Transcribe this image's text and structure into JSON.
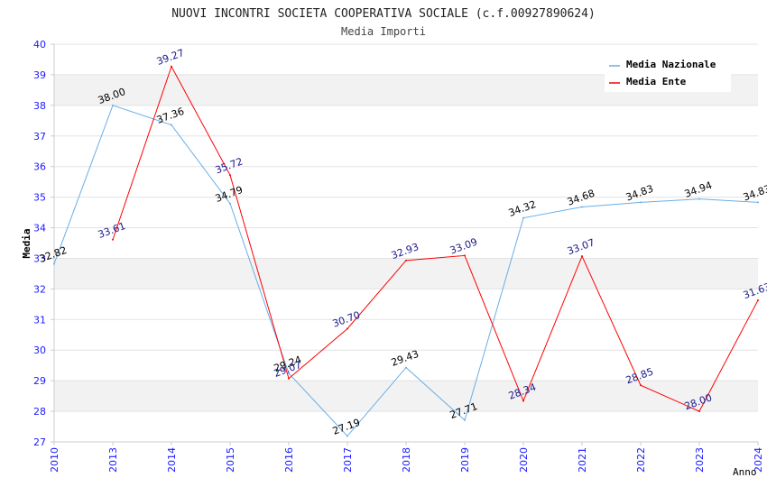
{
  "chart_data": {
    "type": "line",
    "title": "NUOVI INCONTRI SOCIETA COOPERATIVA SOCIALE (c.f.00927890624)",
    "subtitle": "Media Importi",
    "xlabel": "Anno",
    "ylabel": "Media",
    "categories": [
      "2010",
      "2013",
      "2014",
      "2015",
      "2016",
      "2017",
      "2018",
      "2019",
      "2020",
      "2021",
      "2022",
      "2023",
      "2024"
    ],
    "y_ticks": [
      "27",
      "28",
      "29",
      "30",
      "31",
      "32",
      "33",
      "34",
      "35",
      "36",
      "37",
      "38",
      "39",
      "40"
    ],
    "ylim": [
      27,
      40
    ],
    "grid": true,
    "legend_position": "top-right",
    "series": [
      {
        "name": "Media Nazionale",
        "color": "#6aaee6",
        "label_color": "#000000",
        "values": [
          32.82,
          38.0,
          37.36,
          34.79,
          29.24,
          27.19,
          29.43,
          27.71,
          34.32,
          34.68,
          34.83,
          34.94,
          34.83
        ],
        "labels": [
          "32.82",
          "38.00",
          "37.36",
          "34.79",
          "29.24",
          "27.19",
          "29.43",
          "27.71",
          "34.32",
          "34.68",
          "34.83",
          "34.94",
          "34.83"
        ]
      },
      {
        "name": "Media Ente",
        "color": "#ff0000",
        "label_color": "#1a1a8c",
        "values": [
          null,
          33.61,
          39.27,
          35.72,
          29.07,
          30.7,
          32.93,
          33.09,
          28.34,
          33.07,
          28.85,
          28.0,
          31.63
        ],
        "labels": [
          "",
          "33.61",
          "39.27",
          "35.72",
          "29.07",
          "30.70",
          "32.93",
          "33.09",
          "28.34",
          "33.07",
          "28.85",
          "28.00",
          "31.63"
        ]
      }
    ]
  }
}
